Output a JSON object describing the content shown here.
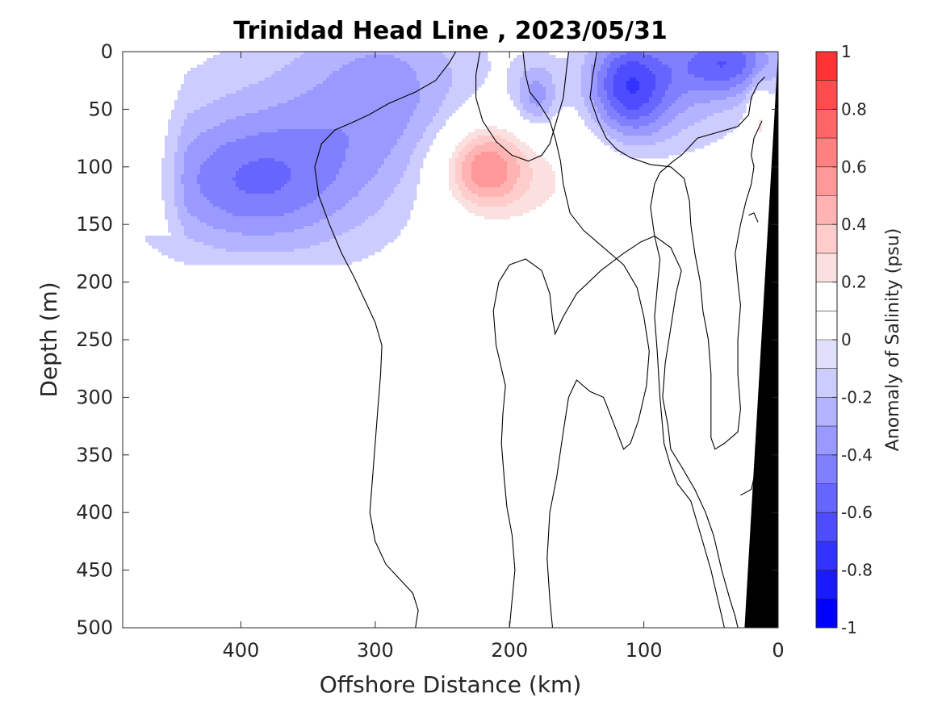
{
  "chart_data": {
    "type": "heatmap",
    "title": "Trinidad Head Line , 2023/05/31",
    "xlabel": "Offshore Distance (km)",
    "ylabel": "Depth (m)",
    "xlim": [
      488,
      0
    ],
    "ylim": [
      500,
      0
    ],
    "x_reversed": true,
    "y_reversed": true,
    "x_ticks": [
      400,
      300,
      200,
      100,
      0
    ],
    "y_ticks": [
      0,
      50,
      100,
      150,
      200,
      250,
      300,
      350,
      400,
      450,
      500
    ],
    "colorbar": {
      "label": "Anomaly of Salinity (psu)",
      "range": [
        -1,
        1
      ],
      "levels": [
        -1,
        -0.9,
        -0.8,
        -0.7,
        -0.6,
        -0.5,
        -0.4,
        -0.3,
        -0.2,
        -0.1,
        0,
        0.1,
        0.2,
        0.3,
        0.4,
        0.5,
        0.6,
        0.7,
        0.8,
        0.9,
        1
      ],
      "colors": [
        "#0000ff",
        "#1a1aff",
        "#3333ff",
        "#4d4dff",
        "#6666ff",
        "#8080ff",
        "#9999ff",
        "#b3b3ff",
        "#ccccff",
        "#e0e0fa",
        "#ffffff",
        "#ffffff",
        "#fbe0e0",
        "#ffcccc",
        "#ffb3b3",
        "#ff9999",
        "#ff8080",
        "#ff6666",
        "#ff4d4d",
        "#ff3333",
        "#ff0000"
      ],
      "ticks": [
        -1,
        -0.8,
        -0.6,
        -0.4,
        -0.2,
        0,
        0.2,
        0.4,
        0.6,
        0.8,
        1
      ],
      "tick_labels": [
        "-1",
        "-0.8",
        "-0.6",
        "-0.4",
        "-0.2",
        "0",
        "0.2",
        "0.4",
        "0.6",
        "0.8",
        "1"
      ]
    },
    "features": [
      {
        "name": "offshore fresh anomaly",
        "sign": "negative",
        "min_value": -0.5,
        "x_range_km": [
          435,
          250
        ],
        "depth_range_m": [
          0,
          180
        ],
        "core_km": 395,
        "core_depth_m": 115
      },
      {
        "name": "subsurface salty anomaly",
        "sign": "positive",
        "max_value": 0.5,
        "x_range_km": [
          268,
          143
        ],
        "depth_range_m": [
          25,
          170
        ],
        "core_km": 220,
        "core_depth_m": 100
      },
      {
        "name": "nearshore surface fresh anomaly",
        "sign": "negative",
        "min_value": -0.6,
        "x_range_km": [
          128,
          10
        ],
        "depth_range_m": [
          0,
          90
        ],
        "core_km": 112,
        "core_depth_m": 35
      },
      {
        "name": "small fresh patch",
        "sign": "negative",
        "min_value": -0.3,
        "x_range_km": [
          195,
          165
        ],
        "depth_range_m": [
          10,
          65
        ],
        "core_km": 180,
        "core_depth_m": 40
      },
      {
        "name": "near-coast salty patch",
        "sign": "positive",
        "max_value": 0.3,
        "x_range_km": [
          20,
          10
        ],
        "depth_range_m": [
          30,
          95
        ],
        "core_km": 15,
        "core_depth_m": 60
      }
    ],
    "zero_contours": true,
    "bathymetry": {
      "shore_km": 0,
      "bottom_at_500m_km": 25
    }
  }
}
